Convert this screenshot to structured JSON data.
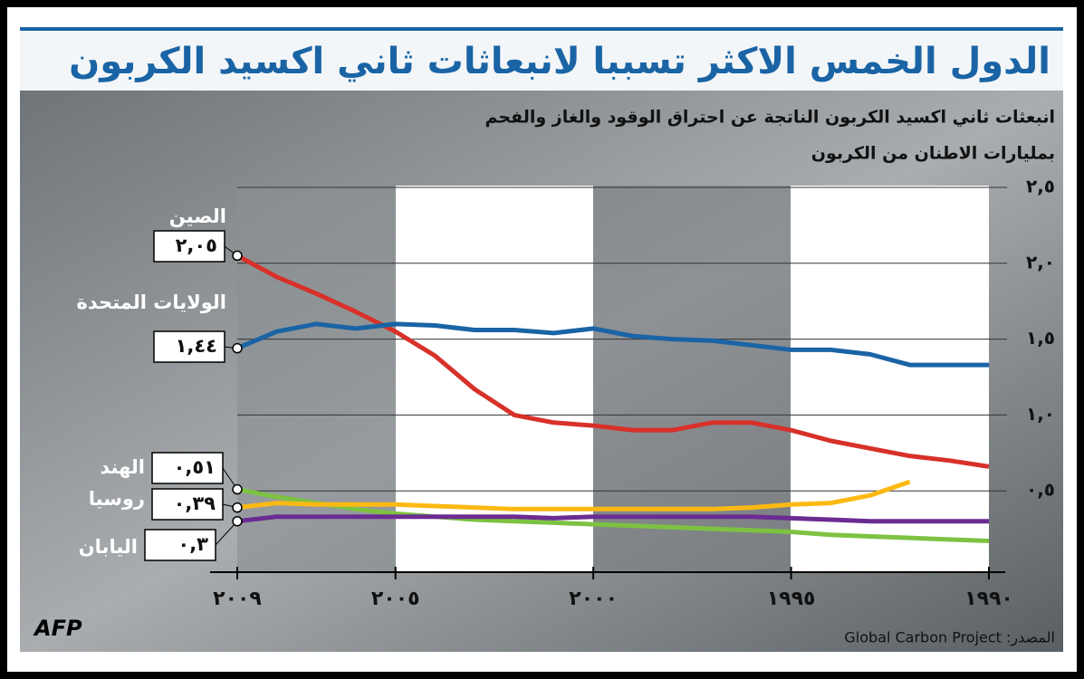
{
  "chart_data": {
    "type": "line",
    "title": "الدول الخمس الاكثر تسببا لانبعاثات ثاني اكسيد الكربون",
    "subtitle": [
      "انبعثات ثاني اكسيد الكربون الناتجة عن احتراق الوقود والغاز والفحم",
      "بمليارات الاطنان من الكربون"
    ],
    "source": "المصدر: Global Carbon Project",
    "logo": "AFP",
    "x": [
      1990,
      1991,
      1992,
      1993,
      1994,
      1995,
      1996,
      1997,
      1998,
      1999,
      2000,
      2001,
      2002,
      2003,
      2004,
      2005,
      2006,
      2007,
      2008,
      2009
    ],
    "xlim": [
      2009,
      1990
    ],
    "xticks": [
      {
        "value": 2009,
        "label": "٢٠٠٩"
      },
      {
        "value": 2005,
        "label": "٢٠٠٥"
      },
      {
        "value": 2000,
        "label": "٢٠٠٠"
      },
      {
        "value": 1995,
        "label": "١٩٩٥"
      },
      {
        "value": 1990,
        "label": "١٩٩٠"
      }
    ],
    "ylim": [
      0,
      2.5
    ],
    "yticks": [
      {
        "value": 0.5,
        "label": "٠,٥"
      },
      {
        "value": 1.0,
        "label": "١,٠"
      },
      {
        "value": 1.5,
        "label": "١,٥"
      },
      {
        "value": 2.0,
        "label": "٢,٠"
      },
      {
        "value": 2.5,
        "label": "٢,٥"
      }
    ],
    "grid": true,
    "series": [
      {
        "name": "الصين",
        "color": "#d7312a",
        "values": [
          0.66,
          0.7,
          0.73,
          0.78,
          0.83,
          0.9,
          0.95,
          0.95,
          0.9,
          0.9,
          0.93,
          0.95,
          1.0,
          1.17,
          1.39,
          1.55,
          1.68,
          1.8,
          1.91,
          2.05
        ],
        "value_labels": [
          null,
          null,
          null,
          null,
          null,
          null,
          null,
          null,
          null,
          null,
          null,
          null,
          null,
          null,
          null,
          null,
          null,
          null,
          null,
          "٢,٠٥"
        ]
      },
      {
        "name": "الولايات المتحدة",
        "color": "#1a64a5",
        "values": [
          1.33,
          1.33,
          1.33,
          1.4,
          1.43,
          1.43,
          1.46,
          1.49,
          1.5,
          1.52,
          1.57,
          1.54,
          1.56,
          1.56,
          1.59,
          1.6,
          1.57,
          1.6,
          1.55,
          1.44
        ],
        "value_labels": [
          null,
          null,
          null,
          null,
          null,
          null,
          null,
          null,
          null,
          null,
          null,
          null,
          null,
          null,
          null,
          null,
          null,
          null,
          null,
          "١,٤٤"
        ]
      },
      {
        "name": "الهند",
        "color": "#7dc242",
        "values": [
          0.17,
          0.18,
          0.19,
          0.2,
          0.21,
          0.23,
          0.24,
          0.25,
          0.26,
          0.27,
          0.28,
          0.29,
          0.3,
          0.31,
          0.33,
          0.35,
          0.38,
          0.42,
          0.46,
          0.51
        ],
        "value_labels": [
          null,
          null,
          null,
          null,
          null,
          null,
          null,
          null,
          null,
          null,
          null,
          null,
          null,
          null,
          null,
          null,
          null,
          null,
          null,
          "٠,٥١"
        ]
      },
      {
        "name": "روسيا",
        "color": "#fdb913",
        "values": [
          null,
          null,
          0.56,
          0.47,
          0.42,
          0.41,
          0.39,
          0.38,
          0.38,
          0.38,
          0.38,
          0.38,
          0.38,
          0.39,
          0.4,
          0.41,
          0.41,
          0.41,
          0.42,
          0.39
        ],
        "value_labels": [
          null,
          null,
          null,
          null,
          null,
          null,
          null,
          null,
          null,
          null,
          null,
          null,
          null,
          null,
          null,
          null,
          null,
          null,
          null,
          "٠,٣٩"
        ]
      },
      {
        "name": "اليابان",
        "color": "#6b2c91",
        "values": [
          0.3,
          0.3,
          0.3,
          0.3,
          0.31,
          0.32,
          0.33,
          0.33,
          0.33,
          0.33,
          0.33,
          0.32,
          0.33,
          0.33,
          0.33,
          0.33,
          0.33,
          0.33,
          0.33,
          0.3
        ],
        "value_labels": [
          null,
          null,
          null,
          null,
          null,
          null,
          null,
          null,
          null,
          null,
          null,
          null,
          null,
          null,
          null,
          null,
          null,
          null,
          null,
          "٠,٣"
        ]
      }
    ]
  }
}
